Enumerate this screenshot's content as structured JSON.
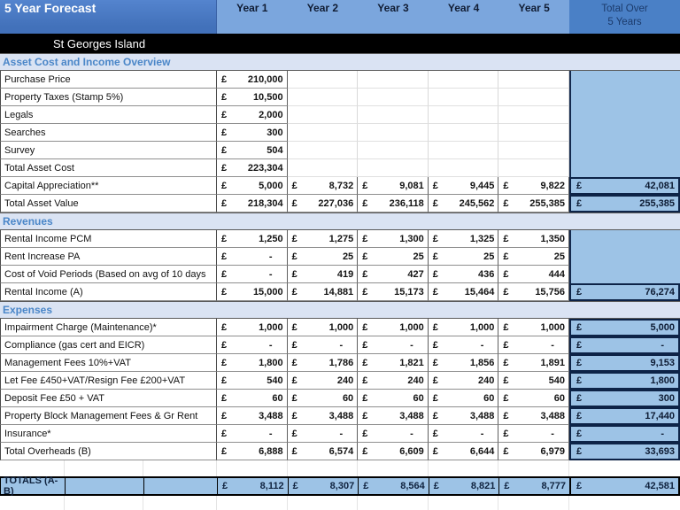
{
  "header": {
    "title": "5 Year Forecast",
    "year_columns": [
      "Year 1",
      "Year 2",
      "Year 3",
      "Year 4",
      "Year 5"
    ],
    "total_column": {
      "line1": "Total Over",
      "line2": "5 Years"
    }
  },
  "property_name": "St Georges Island",
  "currency_symbol": "£",
  "colors": {
    "header_left_blue": "#4a79c4",
    "header_years_blue": "#7ba6dd",
    "header_total_blue": "#4a80c6",
    "total_column_blue": "#9dc3e6",
    "section_band": "#dae3f3",
    "section_text_blue": "#4a86c8",
    "black_band": "#000000"
  },
  "chart_data": {
    "type": "table",
    "title": "5 Year Forecast — St Georges Island",
    "columns": [
      "Year 1",
      "Year 2",
      "Year 3",
      "Year 4",
      "Year 5",
      "Total Over 5 Years"
    ]
  },
  "table": {
    "rows": [
      {
        "type": "section",
        "label": "Asset Cost and Income Overview"
      },
      {
        "type": "data",
        "label": "Purchase Price",
        "values": [
          "210,000",
          "",
          "",
          "",
          ""
        ],
        "total": null
      },
      {
        "type": "data",
        "label": "Property Taxes (Stamp 5%)",
        "values": [
          "10,500",
          "",
          "",
          "",
          ""
        ],
        "total": null
      },
      {
        "type": "data",
        "label": "Legals",
        "values": [
          "2,000",
          "",
          "",
          "",
          ""
        ],
        "total": null
      },
      {
        "type": "data",
        "label": "Searches",
        "values": [
          "300",
          "",
          "",
          "",
          ""
        ],
        "total": null
      },
      {
        "type": "data",
        "label": "Survey",
        "values": [
          "504",
          "",
          "",
          "",
          ""
        ],
        "total": null
      },
      {
        "type": "data",
        "label": "Total Asset Cost",
        "values": [
          "223,304",
          "",
          "",
          "",
          ""
        ],
        "total": null
      },
      {
        "type": "data",
        "label": "Capital Appreciation**",
        "values": [
          "5,000",
          "8,732",
          "9,081",
          "9,445",
          "9,822"
        ],
        "total": "42,081"
      },
      {
        "type": "data",
        "label": "Total Asset Value",
        "values": [
          "218,304",
          "227,036",
          "236,118",
          "245,562",
          "255,385"
        ],
        "total": "255,385"
      },
      {
        "type": "section",
        "label": "Revenues"
      },
      {
        "type": "data",
        "label": "Rental Income PCM",
        "values": [
          "1,250",
          "1,275",
          "1,300",
          "1,325",
          "1,350"
        ],
        "total": null
      },
      {
        "type": "data",
        "label": "Rent Increase PA",
        "values": [
          "-",
          "25",
          "25",
          "25",
          "25"
        ],
        "total": null
      },
      {
        "type": "data",
        "label": "Cost of Void Periods (Based on avg of 10 days",
        "values": [
          "-",
          "419",
          "427",
          "436",
          "444"
        ],
        "total": null
      },
      {
        "type": "data",
        "label": "Rental Income (A)",
        "values": [
          "15,000",
          "14,881",
          "15,173",
          "15,464",
          "15,756"
        ],
        "total": "76,274"
      },
      {
        "type": "section",
        "label": "Expenses"
      },
      {
        "type": "data",
        "label": "Impairment Charge (Maintenance)*",
        "values": [
          "1,000",
          "1,000",
          "1,000",
          "1,000",
          "1,000"
        ],
        "total": "5,000"
      },
      {
        "type": "data",
        "label": "Compliance (gas cert and EICR)",
        "values": [
          "-",
          "-",
          "-",
          "-",
          "-"
        ],
        "total": "-"
      },
      {
        "type": "data",
        "label": "Management Fees 10%+VAT",
        "values": [
          "1,800",
          "1,786",
          "1,821",
          "1,856",
          "1,891"
        ],
        "total": "9,153"
      },
      {
        "type": "data",
        "label": "Let Fee £450+VAT/Resign Fee £200+VAT",
        "values": [
          "540",
          "240",
          "240",
          "240",
          "540"
        ],
        "total": "1,800"
      },
      {
        "type": "data",
        "label": "Deposit Fee £50 + VAT",
        "values": [
          "60",
          "60",
          "60",
          "60",
          "60"
        ],
        "total": "300"
      },
      {
        "type": "data",
        "label": "Property Block Management Fees & Gr Rent",
        "values": [
          "3,488",
          "3,488",
          "3,488",
          "3,488",
          "3,488"
        ],
        "total": "17,440"
      },
      {
        "type": "data",
        "label": "Insurance*",
        "values": [
          "-",
          "-",
          "-",
          "-",
          "-"
        ],
        "total": "-"
      },
      {
        "type": "data",
        "label": "Total Overheads (B)",
        "values": [
          "6,888",
          "6,574",
          "6,609",
          "6,644",
          "6,979"
        ],
        "total": "33,693"
      },
      {
        "type": "spacer"
      },
      {
        "type": "totals",
        "label": "TOTALS (A-B)",
        "values": [
          "8,112",
          "8,307",
          "8,564",
          "8,821",
          "8,777"
        ],
        "total": "42,581"
      }
    ]
  }
}
